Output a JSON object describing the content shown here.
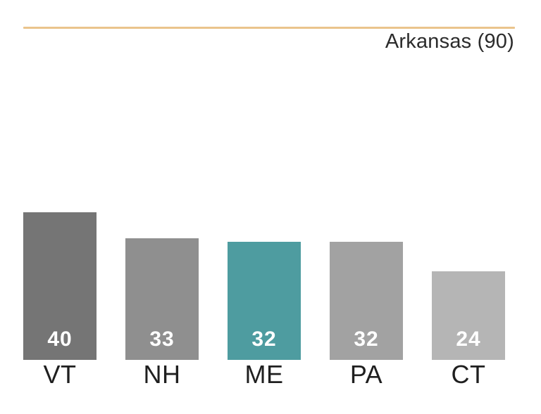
{
  "header": {
    "title": "Arkansas (90)",
    "rule_color": "#eac48c",
    "title_color": "#2b2b2b"
  },
  "chart_data": {
    "type": "bar",
    "title": "Arkansas (90)",
    "categories": [
      "VT",
      "NH",
      "ME",
      "PA",
      "CT"
    ],
    "values": [
      40,
      33,
      32,
      32,
      24
    ],
    "bar_colors": [
      "#757575",
      "#8f8f8f",
      "#4e9ca0",
      "#a2a2a2",
      "#b5b5b5"
    ],
    "highlight_index": 2,
    "highlight_color": "#4e9ca0",
    "value_label_color": "#ffffff",
    "category_label_color": "#1f1f1f",
    "xlabel": "",
    "ylabel": "",
    "ylim": [
      0,
      40
    ],
    "grid": false,
    "legend": false
  }
}
